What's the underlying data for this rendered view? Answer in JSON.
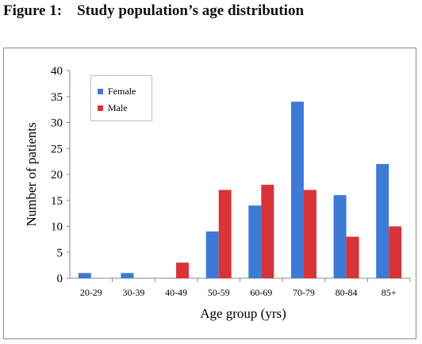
{
  "figure": {
    "label": "Figure 1:",
    "title": "Study population’s age distribution"
  },
  "chart_data": {
    "type": "bar",
    "categories": [
      "20-29",
      "30-39",
      "40-49",
      "50-59",
      "60-69",
      "70-79",
      "80-84",
      "85+"
    ],
    "series": [
      {
        "name": "Female",
        "values": [
          1,
          1,
          0,
          9,
          14,
          34,
          16,
          22
        ],
        "color": "#3d7ad4"
      },
      {
        "name": "Male",
        "values": [
          0,
          0,
          3,
          17,
          18,
          17,
          8,
          10
        ],
        "color": "#d9333a"
      }
    ],
    "xlabel": "Age group (yrs)",
    "ylabel": "Number of patients",
    "ylim": [
      0,
      40
    ],
    "yticks": [
      0,
      5,
      10,
      15,
      20,
      25,
      30,
      35,
      40
    ],
    "grid": false,
    "legend_position": "top-left"
  }
}
